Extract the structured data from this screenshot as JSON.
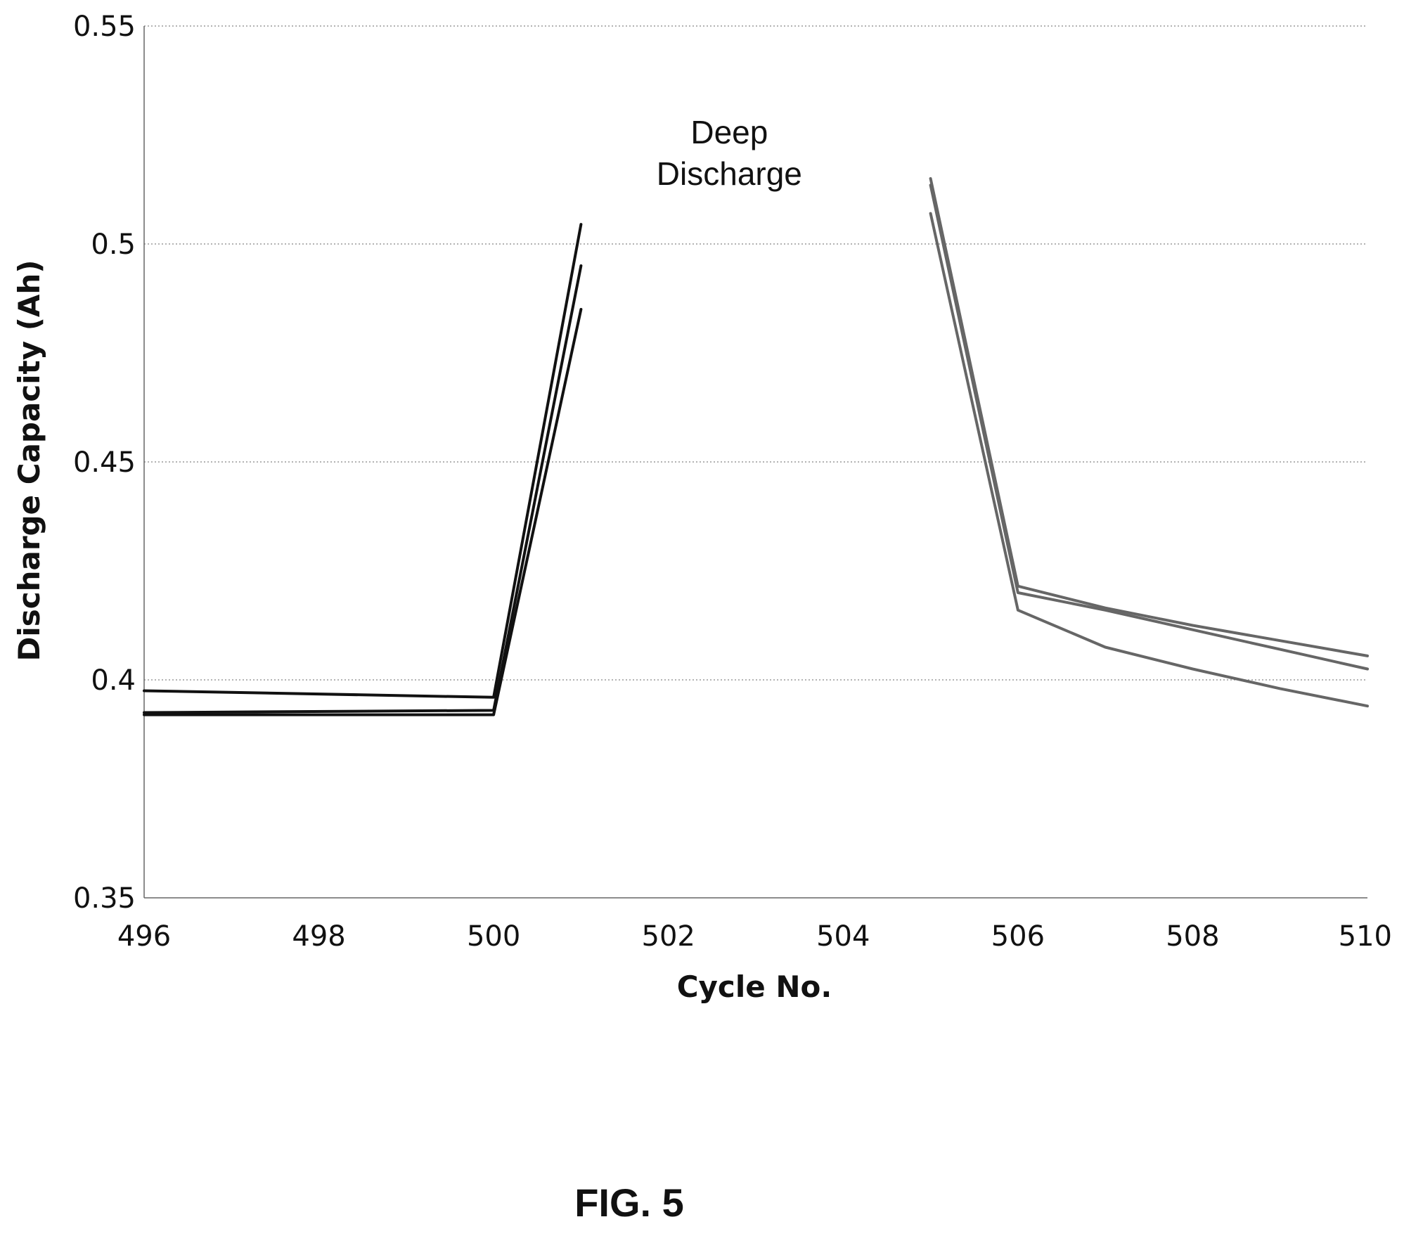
{
  "chart_data": {
    "type": "line",
    "title": "",
    "xlabel": "Cycle No.",
    "ylabel": "Discharge Capacity (Ah)",
    "xlim": [
      496,
      510
    ],
    "ylim": [
      0.35,
      0.55
    ],
    "x_ticks": [
      "496",
      "498",
      "500",
      "502",
      "504",
      "506",
      "508",
      "510"
    ],
    "y_ticks": [
      "0.35",
      "0.4",
      "0.45",
      "0.5",
      "0.55"
    ],
    "grid": true,
    "legend": "none",
    "annotation": {
      "lines": [
        "Deep",
        "Discharge"
      ],
      "x": 504.95,
      "y": 0.516
    },
    "series": [
      {
        "color": "#111111",
        "points": [
          [
            496,
            0.3975
          ],
          [
            500,
            0.396
          ],
          [
            501,
            0.5045
          ]
        ]
      },
      {
        "color": "#111111",
        "points": [
          [
            496,
            0.3925
          ],
          [
            500,
            0.393
          ],
          [
            501,
            0.495
          ]
        ]
      },
      {
        "color": "#111111",
        "points": [
          [
            496,
            0.392
          ],
          [
            500,
            0.392
          ],
          [
            501,
            0.485
          ]
        ]
      },
      {
        "color": "#666666",
        "points": [
          [
            505,
            0.515
          ],
          [
            506,
            0.4215
          ],
          [
            507,
            0.4165
          ],
          [
            508,
            0.4125
          ],
          [
            509,
            0.409
          ],
          [
            510,
            0.4055
          ]
        ]
      },
      {
        "color": "#666666",
        "points": [
          [
            505,
            0.5135
          ],
          [
            506,
            0.42
          ],
          [
            507,
            0.416
          ],
          [
            508,
            0.4115
          ],
          [
            509,
            0.407
          ],
          [
            510,
            0.4025
          ]
        ]
      },
      {
        "color": "#666666",
        "points": [
          [
            505,
            0.507
          ],
          [
            506,
            0.416
          ],
          [
            507,
            0.4075
          ],
          [
            508,
            0.4025
          ],
          [
            509,
            0.398
          ],
          [
            510,
            0.394
          ]
        ]
      }
    ]
  },
  "figure_label": "FIG. 5"
}
